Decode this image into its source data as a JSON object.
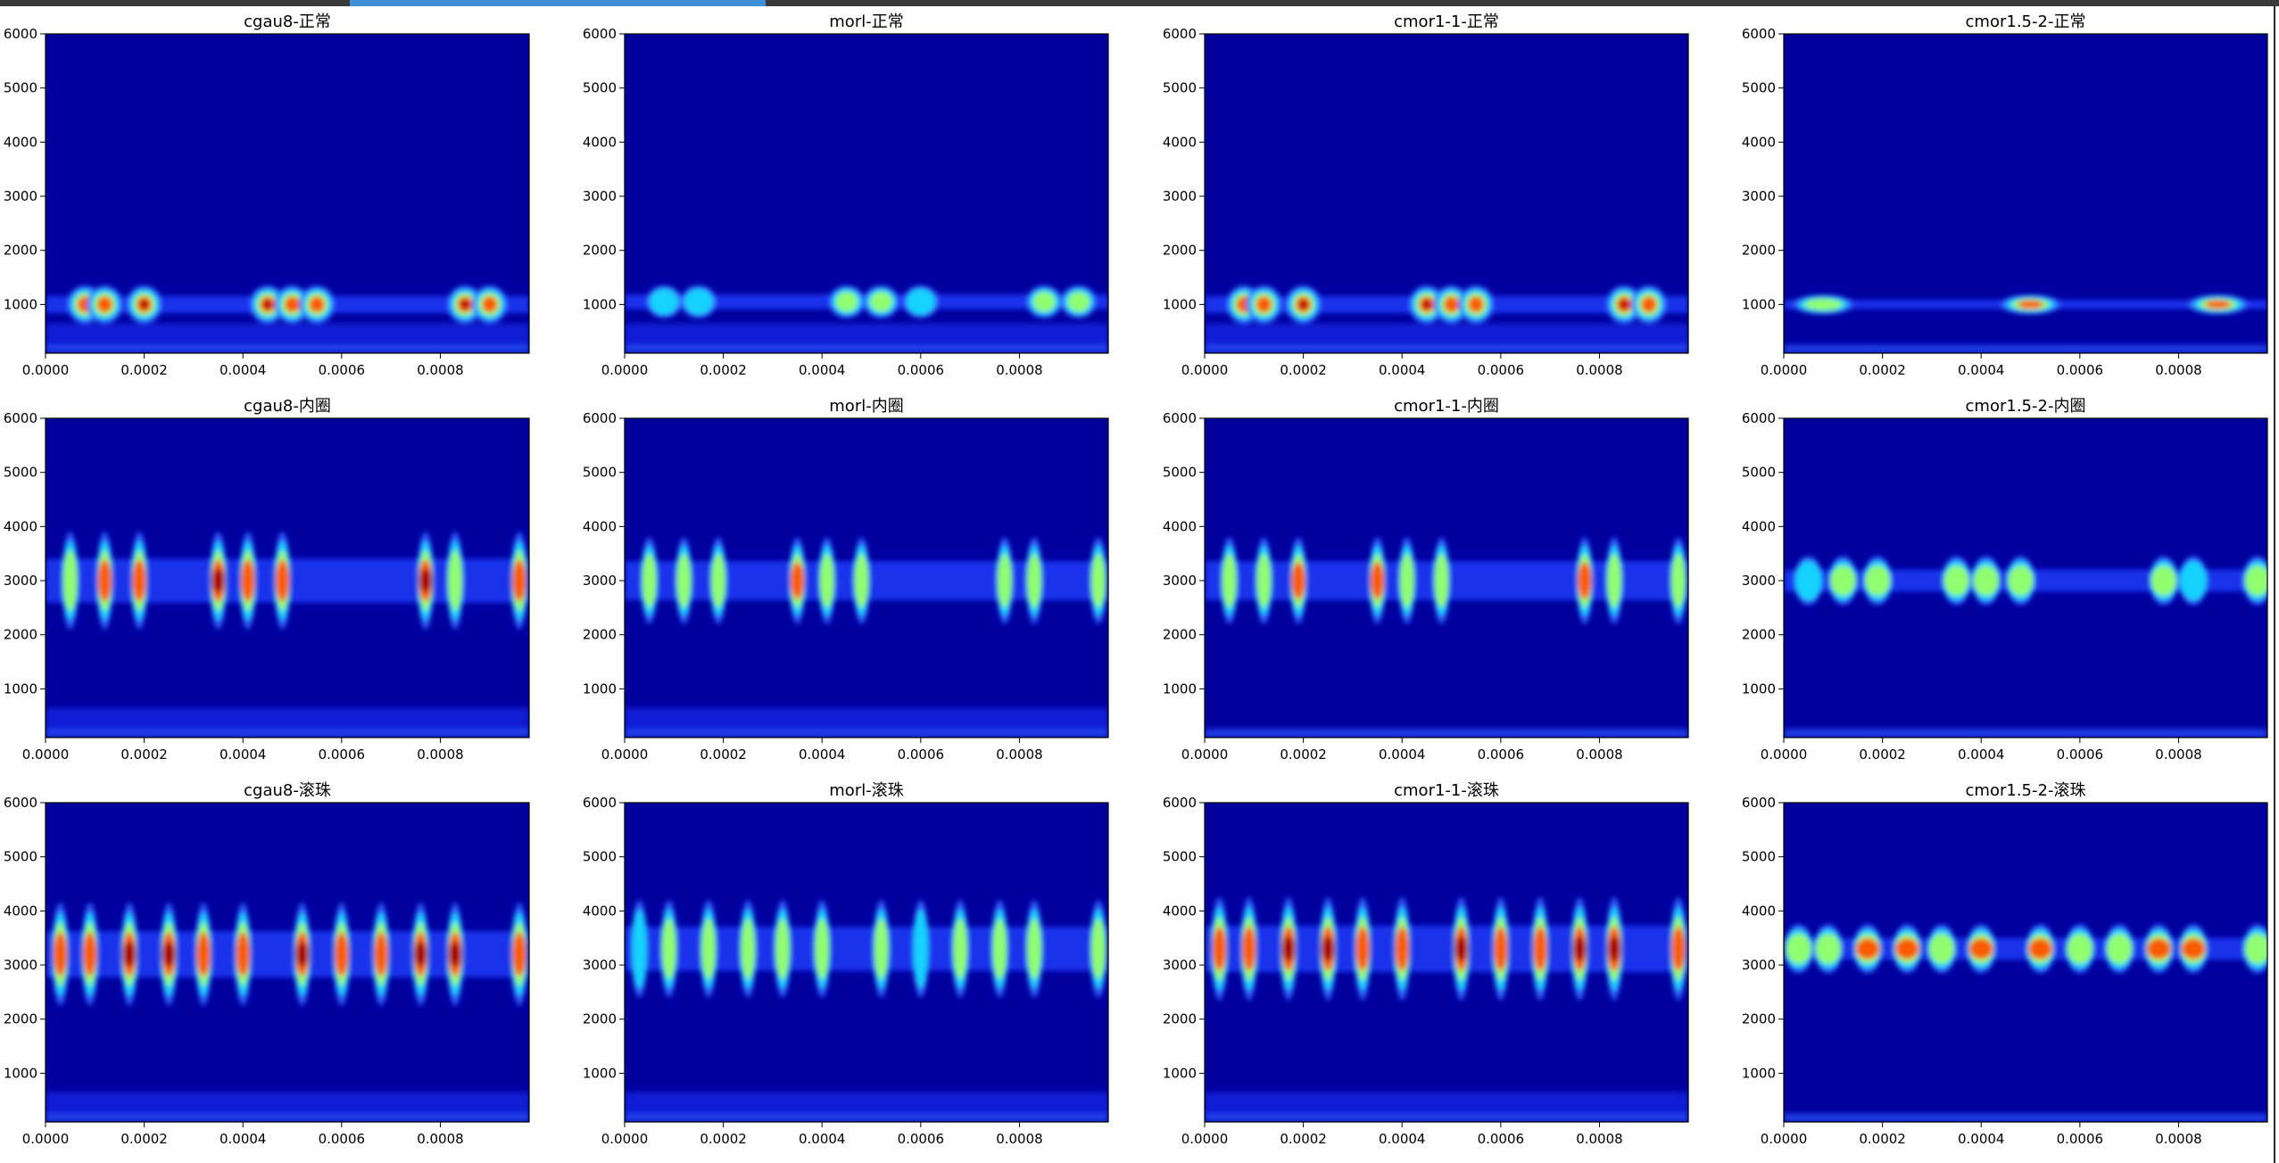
{
  "chart_data": {
    "type": "heatmap",
    "layout": {
      "rows": 3,
      "cols": 4
    },
    "colormap": "jet",
    "colors": {
      "background": "#00009f",
      "stops": [
        "#00009f",
        "#0000ff",
        "#3d7dff",
        "#00ffff",
        "#ffff00",
        "#ff0000",
        "#800000"
      ]
    },
    "x_ticks": [
      "0.0000",
      "0.0002",
      "0.0004",
      "0.0006",
      "0.0008"
    ],
    "x_tick_values": [
      0,
      0.0002,
      0.0004,
      0.0006,
      0.0008
    ],
    "xlim": [
      0,
      0.00098
    ],
    "y_ticks": [
      "1000",
      "2000",
      "3000",
      "4000",
      "5000",
      "6000"
    ],
    "y_tick_values": [
      1000,
      2000,
      3000,
      4000,
      5000,
      6000
    ],
    "ylim": [
      100,
      6000
    ],
    "panels": [
      {
        "title": "cgau8-正常",
        "wavelet": "cgau8",
        "condition": "normal",
        "band_center": 1000,
        "band_width": 350,
        "peak_times": [
          8e-05,
          0.00012,
          0.0002,
          0.00045,
          0.0005,
          0.00055,
          0.00085,
          0.0009
        ],
        "peak_intensity": 1.0,
        "low_band": true
      },
      {
        "title": "morl-正常",
        "wavelet": "morl",
        "condition": "normal",
        "band_center": 1050,
        "band_width": 300,
        "peak_times": [
          8e-05,
          0.00015,
          0.00045,
          0.00052,
          0.0006,
          0.00085,
          0.00092
        ],
        "peak_intensity": 0.65,
        "low_band": true
      },
      {
        "title": "cmor1-1-正常",
        "wavelet": "cmor1-1",
        "condition": "normal",
        "band_center": 1000,
        "band_width": 350,
        "peak_times": [
          8e-05,
          0.00012,
          0.0002,
          0.00045,
          0.0005,
          0.00055,
          0.00085,
          0.0009
        ],
        "peak_intensity": 1.0,
        "low_band": true
      },
      {
        "title": "cmor1.5-2-正常",
        "wavelet": "cmor1.5-2",
        "condition": "normal",
        "band_center": 1000,
        "band_width": 180,
        "peak_times": [
          8e-05,
          0.0005,
          0.00088
        ],
        "peak_intensity": 0.95,
        "low_band": false
      },
      {
        "title": "cgau8-内圈",
        "wavelet": "cgau8",
        "condition": "inner-ring",
        "band_center": 3000,
        "band_width": 900,
        "peak_times": [
          5e-05,
          0.00012,
          0.00019,
          0.00035,
          0.00041,
          0.00048,
          0.00077,
          0.00083,
          0.00096
        ],
        "peak_intensity": 0.95,
        "low_band": true
      },
      {
        "title": "morl-内圈",
        "wavelet": "morl",
        "condition": "inner-ring",
        "band_center": 3000,
        "band_width": 800,
        "peak_times": [
          5e-05,
          0.00012,
          0.00019,
          0.00035,
          0.00041,
          0.00048,
          0.00077,
          0.00083,
          0.00096
        ],
        "peak_intensity": 0.75,
        "low_band": true
      },
      {
        "title": "cmor1-1-内圈",
        "wavelet": "cmor1-1",
        "condition": "inner-ring",
        "band_center": 3000,
        "band_width": 800,
        "peak_times": [
          5e-05,
          0.00012,
          0.00019,
          0.00035,
          0.00041,
          0.00048,
          0.00077,
          0.00083,
          0.00096
        ],
        "peak_intensity": 0.8,
        "low_band": false
      },
      {
        "title": "cmor1.5-2-内圈",
        "wavelet": "cmor1.5-2",
        "condition": "inner-ring",
        "band_center": 3000,
        "band_width": 450,
        "peak_times": [
          5e-05,
          0.00012,
          0.00019,
          0.00035,
          0.00041,
          0.00048,
          0.00077,
          0.00083,
          0.00096
        ],
        "peak_intensity": 0.7,
        "low_band": false
      },
      {
        "title": "cgau8-滚珠",
        "wavelet": "cgau8",
        "condition": "ball",
        "band_center": 3200,
        "band_width": 950,
        "peak_times": [
          3e-05,
          9e-05,
          0.00017,
          0.00025,
          0.00032,
          0.0004,
          0.00052,
          0.0006,
          0.00068,
          0.00076,
          0.00083,
          0.00096
        ],
        "peak_intensity": 1.0,
        "low_band": true
      },
      {
        "title": "morl-滚珠",
        "wavelet": "morl",
        "condition": "ball",
        "band_center": 3300,
        "band_width": 900,
        "peak_times": [
          3e-05,
          9e-05,
          0.00017,
          0.00025,
          0.00032,
          0.0004,
          0.00052,
          0.0006,
          0.00068,
          0.00076,
          0.00083,
          0.00096
        ],
        "peak_intensity": 0.7,
        "low_band": true
      },
      {
        "title": "cmor1-1-滚珠",
        "wavelet": "cmor1-1",
        "condition": "ball",
        "band_center": 3300,
        "band_width": 950,
        "peak_times": [
          3e-05,
          9e-05,
          0.00017,
          0.00025,
          0.00032,
          0.0004,
          0.00052,
          0.0006,
          0.00068,
          0.00076,
          0.00083,
          0.00096
        ],
        "peak_intensity": 1.0,
        "low_band": true
      },
      {
        "title": "cmor1.5-2-滚珠",
        "wavelet": "cmor1.5-2",
        "condition": "ball",
        "band_center": 3300,
        "band_width": 450,
        "peak_times": [
          3e-05,
          9e-05,
          0.00017,
          0.00025,
          0.00032,
          0.0004,
          0.00052,
          0.0006,
          0.00068,
          0.00076,
          0.00083,
          0.00096
        ],
        "peak_intensity": 0.85,
        "low_band": false
      }
    ]
  }
}
